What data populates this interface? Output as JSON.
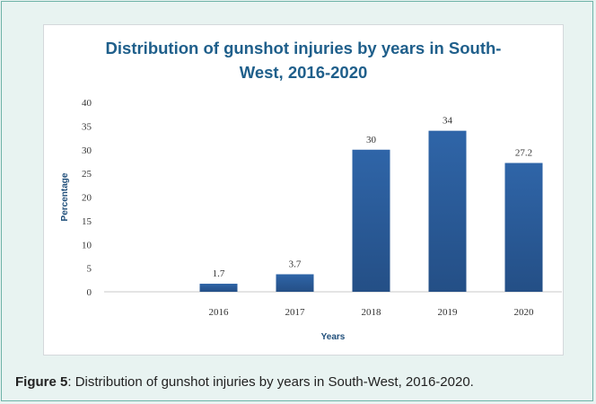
{
  "chart_data": {
    "type": "bar",
    "title_lines": [
      "Distribution of gunshot injuries by years in South-",
      "West, 2016-2020"
    ],
    "xlabel": "Years",
    "ylabel": "Percentage",
    "categories": [
      "",
      "2016",
      "2017",
      "2018",
      "2019",
      "2020"
    ],
    "values": [
      null,
      1.7,
      3.7,
      30,
      34,
      27.2
    ],
    "value_labels": [
      "",
      "1.7",
      "3.7",
      "30",
      "34",
      "27.2"
    ],
    "ylim": [
      0,
      40
    ],
    "yticks": [
      "0",
      "5",
      "10",
      "15",
      "20",
      "25",
      "30",
      "35",
      "40"
    ],
    "grid": false,
    "legend": "none",
    "bar_color": "#2f65a8",
    "bar_color_dark": "#244f86"
  },
  "caption": {
    "label": "Figure 5",
    "text": ": Distribution of gunshot injuries by years in South-West, 2016-2020."
  }
}
